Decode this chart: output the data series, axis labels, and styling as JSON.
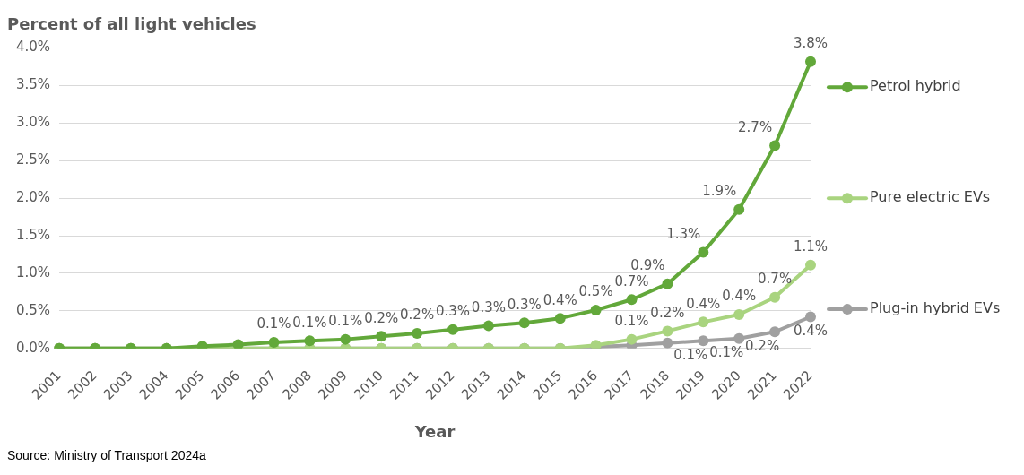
{
  "chart_data": {
    "type": "line",
    "title": "Percent of all light vehicles",
    "xlabel": "Year",
    "categories": [
      "2001",
      "2002",
      "2003",
      "2004",
      "2005",
      "2006",
      "2007",
      "2008",
      "2009",
      "2010",
      "2011",
      "2012",
      "2013",
      "2014",
      "2015",
      "2016",
      "2017",
      "2018",
      "2019",
      "2020",
      "2021",
      "2022"
    ],
    "series": [
      {
        "name": "Petrol hybrid",
        "color": "#62a83a",
        "values": [
          0,
          0,
          0,
          0,
          0.03,
          0.05,
          0.08,
          0.1,
          0.12,
          0.16,
          0.2,
          0.25,
          0.3,
          0.34,
          0.4,
          0.51,
          0.65,
          0.86,
          1.28,
          1.85,
          2.7,
          3.82
        ],
        "value_labels": [
          null,
          null,
          null,
          null,
          null,
          null,
          "0.1%",
          "0.1%",
          "0.1%",
          "0.2%",
          "0.2%",
          "0.3%",
          "0.3%",
          "0.3%",
          "0.4%",
          "0.5%",
          "0.7%",
          "0.9%",
          "1.3%",
          "1.9%",
          "2.7%",
          "3.8%"
        ]
      },
      {
        "name": "Pure electric EVs",
        "color": "#a9d47f",
        "values": [
          0,
          0,
          0,
          0,
          0,
          0,
          0,
          0,
          0,
          0,
          0,
          0,
          0,
          0,
          0,
          0.04,
          0.12,
          0.23,
          0.35,
          0.45,
          0.68,
          1.11
        ],
        "value_labels": [
          null,
          null,
          null,
          null,
          null,
          null,
          null,
          null,
          null,
          null,
          null,
          null,
          null,
          null,
          null,
          null,
          "0.1%",
          "0.2%",
          "0.4%",
          "0.4%",
          "0.7%",
          "1.1%"
        ]
      },
      {
        "name": "Plug-in hybrid EVs",
        "color": "#a0a0a0",
        "values": [
          0,
          0,
          0,
          0,
          0,
          0,
          0,
          0,
          0,
          0,
          0,
          0,
          0,
          0,
          0,
          0.02,
          0.04,
          0.07,
          0.1,
          0.13,
          0.22,
          0.42
        ],
        "value_labels": [
          null,
          null,
          null,
          null,
          null,
          null,
          null,
          null,
          null,
          null,
          null,
          null,
          null,
          null,
          null,
          null,
          null,
          null,
          "0.1%",
          "0.1%",
          "0.2%",
          "0.4%"
        ]
      }
    ],
    "ylim": [
      0,
      4
    ],
    "yticks": [
      {
        "value": 0,
        "label": "0.0%"
      },
      {
        "value": 0.5,
        "label": "0.5%"
      },
      {
        "value": 1,
        "label": "1.0%"
      },
      {
        "value": 1.5,
        "label": "1.5%"
      },
      {
        "value": 2,
        "label": "2.0%"
      },
      {
        "value": 2.5,
        "label": "2.5%"
      },
      {
        "value": 3,
        "label": "3.0%"
      },
      {
        "value": 3.5,
        "label": "3.5%"
      },
      {
        "value": 4,
        "label": "4.0%"
      }
    ],
    "grid": "y",
    "legend": "right",
    "marker": "circle",
    "line_style": "solid",
    "annotations": [
      "Source: Ministry of Transport 2024a"
    ]
  }
}
